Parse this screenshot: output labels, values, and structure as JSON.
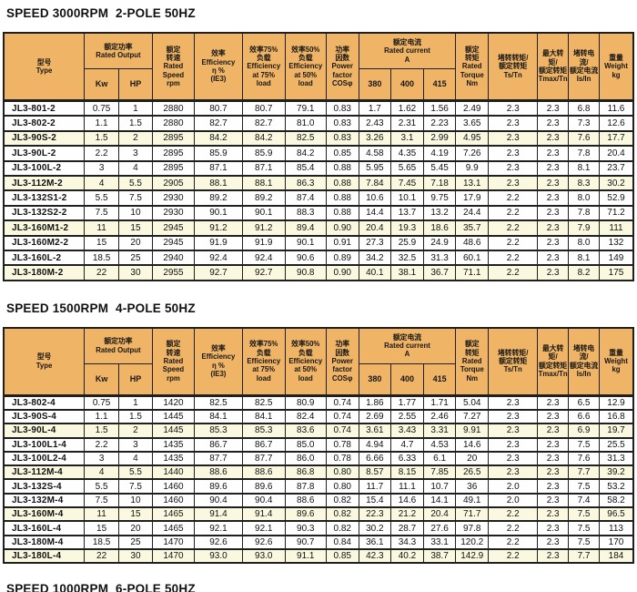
{
  "colors": {
    "header_bg": "#F0B466",
    "row_highlight": "#FAF9E0",
    "border": "#1F1F1F",
    "title_color": "#111111"
  },
  "columns": {
    "type": "型号\nType",
    "rated_output": "额定功率\nRated Output",
    "kw": "Kw",
    "hp": "HP",
    "rated_speed": "额定\n转速\nRated\nSpeed\nrpm",
    "efficiency": "效率\nEfficiency\nη %\n(IE3)",
    "efficiency_75": "效率75%\n负载\nEfficiency\nat 75%\nload",
    "efficiency_50": "效率50%\n负载\nEfficiency\nat 50%\nload",
    "power_factor": "功率\n因数\nPower\nfactor\nCOSφ",
    "rated_current": "额定电流\nRated current\nA",
    "v380": "380",
    "v400": "400",
    "v415": "415",
    "rated_torque": "额定\n转矩\nRated\nTorque\nNm",
    "ts_tn": "堵转转矩/\n额定转矩\nTs/Tn",
    "tmax_tn": "最大转矩/\n额定转矩\nTmax/Tn",
    "is_in": "堵转电流/\n额定电流\nIs/In",
    "weight": "重量\nWeight\nkg"
  },
  "tables": [
    {
      "title": "SPEED 3000RPM  2-POLE 50HZ",
      "rows": [
        [
          "JL3-801-2",
          "0.75",
          "1",
          "2880",
          "80.7",
          "80.7",
          "79.1",
          "0.83",
          "1.7",
          "1.62",
          "1.56",
          "2.49",
          "2.3",
          "2.3",
          "6.8",
          "11.6"
        ],
        [
          "JL3-802-2",
          "1.1",
          "1.5",
          "2880",
          "82.7",
          "82.7",
          "81.0",
          "0.83",
          "2.43",
          "2.31",
          "2.23",
          "3.65",
          "2.3",
          "2.3",
          "7.3",
          "12.6"
        ],
        [
          "JL3-90S-2",
          "1.5",
          "2",
          "2895",
          "84.2",
          "84.2",
          "82.5",
          "0.83",
          "3.26",
          "3.1",
          "2.99",
          "4.95",
          "2.3",
          "2.3",
          "7.6",
          "17.7"
        ],
        [
          "JL3-90L-2",
          "2.2",
          "3",
          "2895",
          "85.9",
          "85.9",
          "84.2",
          "0.85",
          "4.58",
          "4.35",
          "4.19",
          "7.26",
          "2.3",
          "2.3",
          "7.8",
          "20.4"
        ],
        [
          "JL3-100L-2",
          "3",
          "4",
          "2895",
          "87.1",
          "87.1",
          "85.4",
          "0.88",
          "5.95",
          "5.65",
          "5.45",
          "9.9",
          "2.3",
          "2.3",
          "8.1",
          "23.7"
        ],
        [
          "JL3-112M-2",
          "4",
          "5.5",
          "2905",
          "88.1",
          "88.1",
          "86.3",
          "0.88",
          "7.84",
          "7.45",
          "7.18",
          "13.1",
          "2.3",
          "2.3",
          "8.3",
          "30.2"
        ],
        [
          "JL3-132S1-2",
          "5.5",
          "7.5",
          "2930",
          "89.2",
          "89.2",
          "87.4",
          "0.88",
          "10.6",
          "10.1",
          "9.75",
          "17.9",
          "2.2",
          "2.3",
          "8.0",
          "52.9"
        ],
        [
          "JL3-132S2-2",
          "7.5",
          "10",
          "2930",
          "90.1",
          "90.1",
          "88.3",
          "0.88",
          "14.4",
          "13.7",
          "13.2",
          "24.4",
          "2.2",
          "2.3",
          "7.8",
          "71.2"
        ],
        [
          "JL3-160M1-2",
          "11",
          "15",
          "2945",
          "91.2",
          "91.2",
          "89.4",
          "0.90",
          "20.4",
          "19.3",
          "18.6",
          "35.7",
          "2.2",
          "2.3",
          "7.9",
          "111"
        ],
        [
          "JL3-160M2-2",
          "15",
          "20",
          "2945",
          "91.9",
          "91.9",
          "90.1",
          "0.91",
          "27.3",
          "25.9",
          "24.9",
          "48.6",
          "2.2",
          "2.3",
          "8.0",
          "132"
        ],
        [
          "JL3-160L-2",
          "18.5",
          "25",
          "2940",
          "92.4",
          "92.4",
          "90.6",
          "0.89",
          "34.2",
          "32.5",
          "31.3",
          "60.1",
          "2.2",
          "2.3",
          "8.1",
          "149"
        ],
        [
          "JL3-180M-2",
          "22",
          "30",
          "2955",
          "92.7",
          "92.7",
          "90.8",
          "0.90",
          "40.1",
          "38.1",
          "36.7",
          "71.1",
          "2.2",
          "2.3",
          "8.2",
          "175"
        ]
      ]
    },
    {
      "title": "SPEED 1500RPM  4-POLE 50HZ",
      "rows": [
        [
          "JL3-802-4",
          "0.75",
          "1",
          "1420",
          "82.5",
          "82.5",
          "80.9",
          "0.74",
          "1.86",
          "1.77",
          "1.71",
          "5.04",
          "2.3",
          "2.3",
          "6.5",
          "12.9"
        ],
        [
          "JL3-90S-4",
          "1.1",
          "1.5",
          "1445",
          "84.1",
          "84.1",
          "82.4",
          "0.74",
          "2.69",
          "2.55",
          "2.46",
          "7.27",
          "2.3",
          "2.3",
          "6.6",
          "16.8"
        ],
        [
          "JL3-90L-4",
          "1.5",
          "2",
          "1445",
          "85.3",
          "85.3",
          "83.6",
          "0.74",
          "3.61",
          "3.43",
          "3.31",
          "9.91",
          "2.3",
          "2.3",
          "6.9",
          "19.7"
        ],
        [
          "JL3-100L1-4",
          "2.2",
          "3",
          "1435",
          "86.7",
          "86.7",
          "85.0",
          "0.78",
          "4.94",
          "4.7",
          "4.53",
          "14.6",
          "2.3",
          "2.3",
          "7.5",
          "25.5"
        ],
        [
          "JL3-100L2-4",
          "3",
          "4",
          "1435",
          "87.7",
          "87.7",
          "86.0",
          "0.78",
          "6.66",
          "6.33",
          "6.1",
          "20",
          "2.3",
          "2.3",
          "7.6",
          "31.3"
        ],
        [
          "JL3-112M-4",
          "4",
          "5.5",
          "1440",
          "88.6",
          "88.6",
          "86.8",
          "0.80",
          "8.57",
          "8.15",
          "7.85",
          "26.5",
          "2.3",
          "2.3",
          "7.7",
          "39.2"
        ],
        [
          "JL3-132S-4",
          "5.5",
          "7.5",
          "1460",
          "89.6",
          "89.6",
          "87.8",
          "0.80",
          "11.7",
          "11.1",
          "10.7",
          "36",
          "2.0",
          "2.3",
          "7.5",
          "53.2"
        ],
        [
          "JL3-132M-4",
          "7.5",
          "10",
          "1460",
          "90.4",
          "90.4",
          "88.6",
          "0.82",
          "15.4",
          "14.6",
          "14.1",
          "49.1",
          "2.0",
          "2.3",
          "7.4",
          "58.2"
        ],
        [
          "JL3-160M-4",
          "11",
          "15",
          "1465",
          "91.4",
          "91.4",
          "89.6",
          "0.82",
          "22.3",
          "21.2",
          "20.4",
          "71.7",
          "2.2",
          "2.3",
          "7.5",
          "96.5"
        ],
        [
          "JL3-160L-4",
          "15",
          "20",
          "1465",
          "92.1",
          "92.1",
          "90.3",
          "0.82",
          "30.2",
          "28.7",
          "27.6",
          "97.8",
          "2.2",
          "2.3",
          "7.5",
          "113"
        ],
        [
          "JL3-180M-4",
          "18.5",
          "25",
          "1470",
          "92.6",
          "92.6",
          "90.7",
          "0.84",
          "36.1",
          "34.3",
          "33.1",
          "120.2",
          "2.2",
          "2.3",
          "7.5",
          "170"
        ],
        [
          "JL3-180L-4",
          "22",
          "30",
          "1470",
          "93.0",
          "93.0",
          "91.1",
          "0.85",
          "42.3",
          "40.2",
          "38.7",
          "142.9",
          "2.2",
          "2.3",
          "7.7",
          "184"
        ]
      ]
    }
  ],
  "next_section_title": "SPEED 1000RPM  6-POLE 50HZ"
}
